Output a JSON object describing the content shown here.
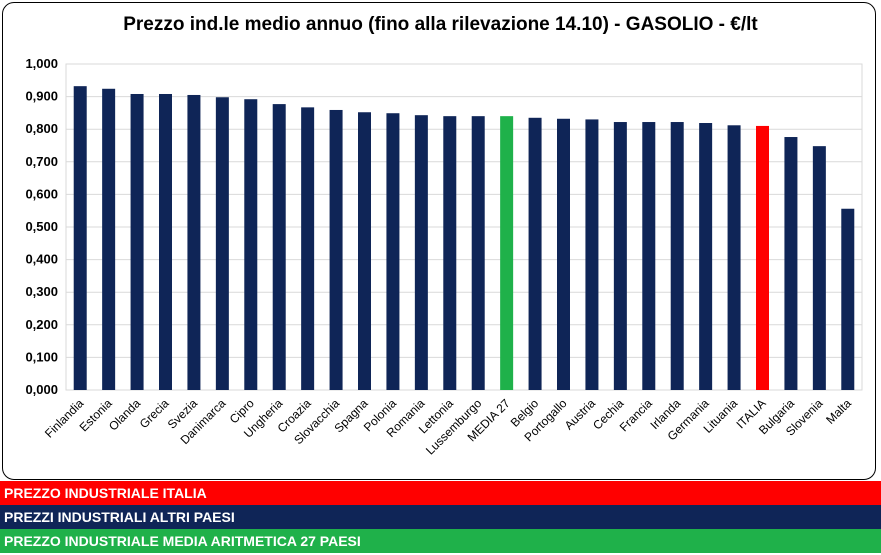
{
  "chart_data": {
    "type": "bar",
    "title": "Prezzo ind.le medio annuo (fino alla rilevazione 14.10) - GASOLIO - €/lt",
    "categories": [
      "Finlandia",
      "Estonia",
      "Olanda",
      "Grecia",
      "Svezia",
      "Danimarca",
      "Cipro",
      "Ungheria",
      "Croazia",
      "Slovacchia",
      "Spagna",
      "Polonia",
      "Romania",
      "Lettonia",
      "Lussemburgo",
      "MEDIA 27",
      "Belgio",
      "Portogallo",
      "Austria",
      "Cechia",
      "Francia",
      "Irlanda",
      "Germania",
      "Lituania",
      "ITALIA",
      "Bulgaria",
      "Slovenia",
      "Malta"
    ],
    "values": [
      0.932,
      0.924,
      0.908,
      0.908,
      0.905,
      0.898,
      0.892,
      0.877,
      0.867,
      0.859,
      0.852,
      0.849,
      0.843,
      0.84,
      0.84,
      0.84,
      0.835,
      0.832,
      0.83,
      0.822,
      0.822,
      0.822,
      0.819,
      0.812,
      0.81,
      0.776,
      0.748,
      0.556
    ],
    "bar_colors": [
      "#0f2557",
      "#0f2557",
      "#0f2557",
      "#0f2557",
      "#0f2557",
      "#0f2557",
      "#0f2557",
      "#0f2557",
      "#0f2557",
      "#0f2557",
      "#0f2557",
      "#0f2557",
      "#0f2557",
      "#0f2557",
      "#0f2557",
      "#1fb14a",
      "#0f2557",
      "#0f2557",
      "#0f2557",
      "#0f2557",
      "#0f2557",
      "#0f2557",
      "#0f2557",
      "#0f2557",
      "#ff0000",
      "#0f2557",
      "#0f2557",
      "#0f2557"
    ],
    "ylim": [
      0,
      1.0
    ],
    "yticks": [
      "0,000",
      "0,100",
      "0,200",
      "0,300",
      "0,400",
      "0,500",
      "0,600",
      "0,700",
      "0,800",
      "0,900",
      "1,000"
    ],
    "grid": true
  },
  "legend": [
    {
      "label": "PREZZO INDUSTRIALE ITALIA",
      "color": "#ff0000"
    },
    {
      "label": "PREZZI INDUSTRIALI ALTRI PAESI",
      "color": "#0f2557"
    },
    {
      "label": "PREZZO INDUSTRIALE MEDIA ARITMETICA 27 PAESI",
      "color": "#1fb14a"
    }
  ]
}
